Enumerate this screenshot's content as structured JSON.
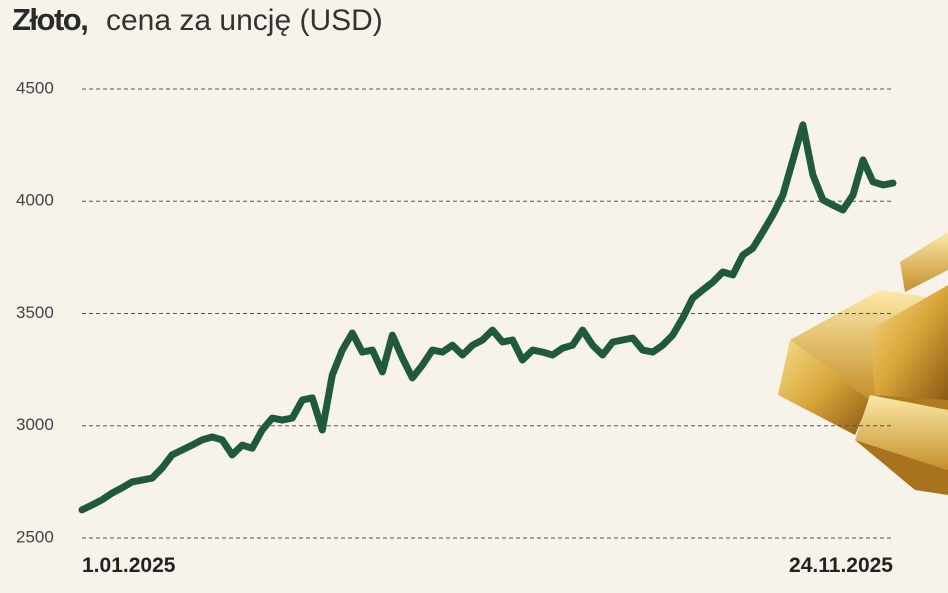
{
  "chart_data": {
    "type": "line",
    "title": "Złoto,",
    "subtitle": "cena za uncję (USD)",
    "categories": [
      "1.01.2025",
      null,
      null,
      null,
      null,
      null,
      null,
      null,
      null,
      null,
      null,
      null,
      null,
      null,
      null,
      null,
      null,
      null,
      null,
      null,
      null,
      null,
      null,
      null,
      null,
      null,
      null,
      null,
      null,
      null,
      null,
      null,
      null,
      null,
      null,
      null,
      null,
      null,
      null,
      null,
      null,
      null,
      null,
      null,
      null,
      null,
      null,
      null,
      null,
      null,
      null,
      null,
      null,
      null,
      null,
      null,
      null,
      null,
      null,
      null,
      null,
      null,
      null,
      null,
      null,
      null,
      null,
      null,
      null,
      null,
      null,
      null,
      null,
      null,
      null,
      null,
      null,
      null,
      null,
      null,
      null,
      "24.11.2025"
    ],
    "values": [
      2625,
      2647,
      2670,
      2700,
      2723,
      2750,
      2758,
      2767,
      2812,
      2870,
      2892,
      2914,
      2937,
      2950,
      2937,
      2870,
      2914,
      2900,
      2981,
      3034,
      3025,
      3034,
      3115,
      3124,
      2981,
      3226,
      3337,
      3413,
      3328,
      3337,
      3240,
      3404,
      3302,
      3213,
      3270,
      3337,
      3328,
      3359,
      3315,
      3359,
      3382,
      3426,
      3373,
      3382,
      3293,
      3337,
      3328,
      3315,
      3346,
      3359,
      3426,
      3359,
      3315,
      3373,
      3382,
      3391,
      3337,
      3328,
      3359,
      3404,
      3480,
      3569,
      3605,
      3640,
      3685,
      3672,
      3760,
      3791,
      3863,
      3939,
      4028,
      4184,
      4340,
      4117,
      4006,
      3983,
      3961,
      4028,
      4184,
      4086,
      4073,
      4081
    ],
    "color": "#1f5a3d",
    "ylim": [
      2500,
      4500
    ],
    "yticks": [
      2500,
      3000,
      3500,
      4000,
      4500
    ],
    "grid": true
  }
}
